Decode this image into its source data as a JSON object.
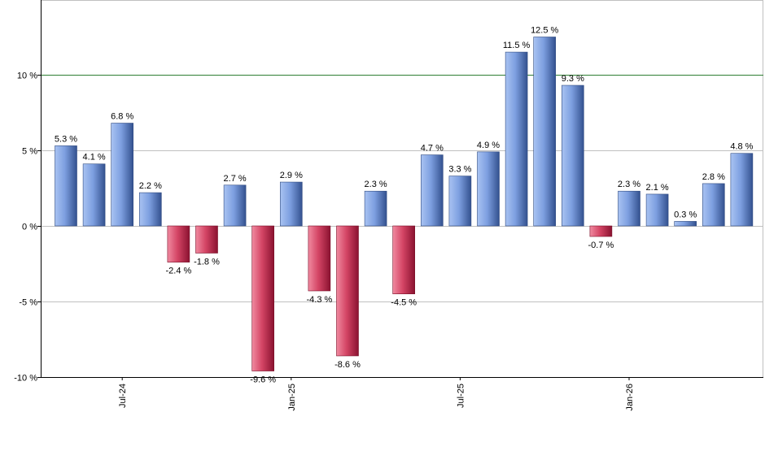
{
  "chart_data": {
    "type": "bar",
    "title": "",
    "xlabel": "",
    "ylabel": "",
    "ylim": [
      -10,
      15
    ],
    "y_ticks": [
      {
        "value": -10,
        "label": "-10 %"
      },
      {
        "value": -5,
        "label": "-5 %"
      },
      {
        "value": 0,
        "label": "0 %"
      },
      {
        "value": 5,
        "label": "5 %"
      },
      {
        "value": 10,
        "label": "10 %"
      }
    ],
    "x_tick_labels": [
      {
        "index": 2,
        "label": "Jul-24"
      },
      {
        "index": 8,
        "label": "Jan-25"
      },
      {
        "index": 14,
        "label": "Jul-25"
      },
      {
        "index": 20,
        "label": "Jan-26"
      }
    ],
    "reference_line": {
      "value": 10,
      "color": "#2e7d32"
    },
    "grid": true,
    "legend": "none",
    "value_labels": [
      "5.3 %",
      "4.1 %",
      "6.8 %",
      "2.2 %",
      "-2.4 %",
      "-1.8 %",
      "2.7 %",
      "-9.6 %",
      "2.9 %",
      "-4.3 %",
      "-8.6 %",
      "2.3 %",
      "-4.5 %",
      "4.7 %",
      "3.3 %",
      "4.9 %",
      "11.5 %",
      "12.5 %",
      "9.3 %",
      "-0.7 %",
      "2.3 %",
      "2.1 %",
      "0.3 %",
      "2.8 %",
      "4.8 %"
    ],
    "values": [
      5.3,
      4.1,
      6.8,
      2.2,
      -2.4,
      -1.8,
      2.7,
      -9.6,
      2.9,
      -4.3,
      -8.6,
      2.3,
      -4.5,
      4.7,
      3.3,
      4.9,
      11.5,
      12.5,
      9.3,
      -0.7,
      2.3,
      2.1,
      0.3,
      2.8,
      4.8
    ],
    "colors": {
      "positive": "#6f93d6",
      "negative": "#cf3b5a",
      "axis": "#000000",
      "grid": "#c0c0c0"
    }
  }
}
